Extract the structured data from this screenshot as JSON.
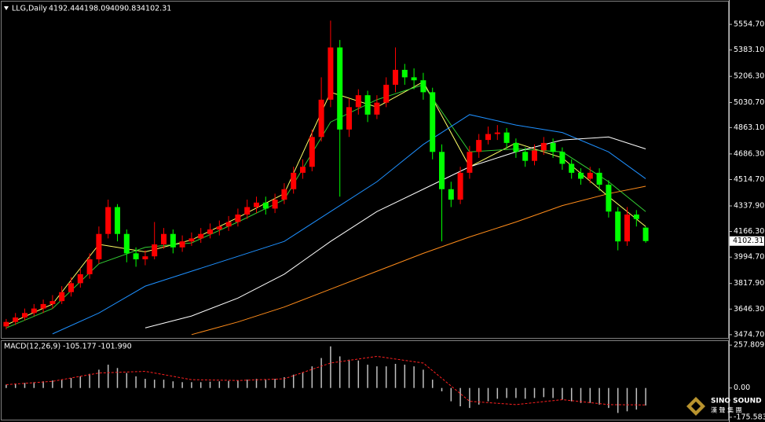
{
  "chart_data": [
    {
      "type": "candlestick",
      "title": "LLG,Daily",
      "open": [
        3530,
        3560,
        3590,
        3620,
        3650,
        3680,
        3700,
        3760,
        3820,
        3880,
        3980,
        4150,
        4330,
        4150,
        4020,
        3980,
        4000,
        4080,
        4150,
        4060,
        4100,
        4120,
        4150,
        4180,
        4200,
        4230,
        4280,
        4330,
        4360,
        4320,
        4380,
        4450,
        4560,
        4600,
        4800,
        5050,
        5400,
        4850,
        5000,
        5080,
        4950,
        5030,
        5150,
        5250,
        5200,
        5180,
        5100,
        4700,
        4450,
        4380,
        4560,
        4700,
        4780,
        4820,
        4830,
        4760,
        4700,
        4640,
        4710,
        4760,
        4700,
        4620,
        4560,
        4520,
        4560,
        4480,
        4300,
        4100,
        4280,
        4192.44
      ],
      "high": [
        3580,
        3620,
        3650,
        3680,
        3710,
        3740,
        3800,
        3860,
        3920,
        4020,
        4200,
        4380,
        4350,
        4180,
        4060,
        4040,
        4230,
        4190,
        4180,
        4140,
        4160,
        4190,
        4220,
        4240,
        4270,
        4320,
        4380,
        4400,
        4400,
        4420,
        4490,
        4600,
        4650,
        4850,
        5200,
        5580,
        5450,
        5060,
        5120,
        5110,
        5080,
        5200,
        5400,
        5290,
        5260,
        5230,
        5130,
        4750,
        4500,
        4600,
        4740,
        4820,
        4870,
        4880,
        4860,
        4790,
        4730,
        4750,
        4800,
        4790,
        4730,
        4650,
        4590,
        4600,
        4590,
        4510,
        4330,
        4330,
        4310,
        4198.09
      ],
      "low": [
        3510,
        3540,
        3570,
        3600,
        3620,
        3650,
        3680,
        3730,
        3790,
        3850,
        3950,
        4120,
        4100,
        3960,
        3930,
        3940,
        3980,
        4050,
        4020,
        4030,
        4070,
        4090,
        4120,
        4140,
        4170,
        4200,
        4250,
        4290,
        4280,
        4290,
        4350,
        4420,
        4520,
        4570,
        4770,
        5000,
        4400,
        4800,
        4950,
        4900,
        4920,
        5000,
        5100,
        5150,
        5120,
        5050,
        4650,
        4100,
        4330,
        4350,
        4520,
        4660,
        4750,
        4780,
        4720,
        4660,
        4600,
        4610,
        4680,
        4660,
        4580,
        4520,
        4480,
        4490,
        4440,
        4260,
        4040,
        4070,
        4200,
        4090.83
      ],
      "close": [
        3560,
        3590,
        3620,
        3650,
        3680,
        3700,
        3760,
        3820,
        3880,
        3980,
        4150,
        4330,
        4150,
        4020,
        3980,
        4000,
        4080,
        4150,
        4060,
        4100,
        4120,
        4150,
        4180,
        4200,
        4230,
        4280,
        4330,
        4360,
        4320,
        4380,
        4450,
        4560,
        4600,
        4800,
        5050,
        5400,
        4850,
        5000,
        5080,
        4950,
        5030,
        5150,
        5250,
        5200,
        5180,
        5100,
        4700,
        4450,
        4380,
        4560,
        4700,
        4780,
        4820,
        4830,
        4760,
        4700,
        4640,
        4710,
        4760,
        4700,
        4620,
        4560,
        4520,
        4560,
        4480,
        4300,
        4100,
        4280,
        4250,
        4102.31
      ],
      "up_color": "#ff0000",
      "down_color": "#00ff00",
      "lines_x": [
        0,
        5,
        10,
        15,
        20,
        25,
        30,
        35,
        40,
        45,
        50,
        55,
        60,
        65,
        69
      ],
      "lines": [
        {
          "color": "#ffff66",
          "values": [
            3540,
            3680,
            4080,
            4030,
            4110,
            4260,
            4420,
            5100,
            5000,
            5170,
            4600,
            4760,
            4660,
            4400,
            4200
          ]
        },
        {
          "color": "#33cc33",
          "values": [
            3520,
            3650,
            3950,
            4060,
            4090,
            4230,
            4380,
            4900,
            5050,
            5150,
            4700,
            4720,
            4700,
            4500,
            4300
          ]
        },
        {
          "color": "#1e90ff",
          "values": [
            null,
            3480,
            3620,
            3800,
            3900,
            4000,
            4100,
            4300,
            4500,
            4750,
            4950,
            4880,
            4830,
            4700,
            4520
          ]
        },
        {
          "color": "#ffffff",
          "values": [
            null,
            null,
            null,
            3520,
            3600,
            3720,
            3880,
            4100,
            4300,
            4450,
            4600,
            4700,
            4780,
            4800,
            4720
          ]
        },
        {
          "color": "#ff8c1a",
          "values": [
            null,
            null,
            null,
            null,
            3475,
            3560,
            3660,
            3780,
            3900,
            4020,
            4130,
            4230,
            4340,
            4420,
            4470
          ]
        }
      ],
      "ylim": [
        3453,
        5713
      ],
      "yticks": [
        {
          "value": 5554.7,
          "label": "5554.70"
        },
        {
          "value": 5383.1,
          "label": "5383.10"
        },
        {
          "value": 5206.3,
          "label": "5206.30"
        },
        {
          "value": 5030.7,
          "label": "5030.70"
        },
        {
          "value": 4863.1,
          "label": "4863.10"
        },
        {
          "value": 4686.3,
          "label": "4686.30"
        },
        {
          "value": 4514.7,
          "label": "4514.70"
        },
        {
          "value": 4337.9,
          "label": "4337.90"
        },
        {
          "value": 4166.3,
          "label": "4166.30"
        },
        {
          "value": 3994.7,
          "label": "3994.70"
        },
        {
          "value": 3817.9,
          "label": "3817.90"
        },
        {
          "value": 3646.3,
          "label": "3646.30"
        },
        {
          "value": 3474.7,
          "label": "3474.70"
        }
      ]
    },
    {
      "type": "macd",
      "title": "MACD(12,26,9)",
      "values": [
        20,
        25,
        30,
        35,
        40,
        45,
        50,
        60,
        70,
        85,
        110,
        140,
        120,
        90,
        70,
        55,
        50,
        50,
        40,
        35,
        35,
        35,
        38,
        40,
        42,
        45,
        50,
        55,
        50,
        55,
        65,
        80,
        95,
        130,
        180,
        250,
        190,
        170,
        165,
        140,
        130,
        130,
        145,
        140,
        130,
        110,
        50,
        -20,
        -80,
        -110,
        -120,
        -100,
        -80,
        -65,
        -60,
        -60,
        -65,
        -60,
        -55,
        -60,
        -70,
        -80,
        -90,
        -90,
        -100,
        -120,
        -150,
        -140,
        -130,
        -105.177
      ],
      "color": "#c0c0c0",
      "signal_x": [
        0,
        5,
        10,
        15,
        20,
        25,
        30,
        35,
        40,
        45,
        50,
        55,
        60,
        65,
        69
      ],
      "signal": [
        20,
        40,
        90,
        100,
        50,
        45,
        55,
        150,
        190,
        150,
        -80,
        -100,
        -70,
        -100,
        -101.99
      ],
      "signal_value_labels": [
        null,
        null,
        null,
        null,
        null,
        null,
        null,
        null,
        null,
        null,
        null,
        null,
        null,
        null,
        "-101.990"
      ],
      "signal_color": "#ff2020",
      "ylim": [
        -195,
        282
      ],
      "yticks": [
        257.809,
        {
          "value": 0,
          "label": "0.00"
        },
        -175.583
      ]
    }
  ],
  "watermark": {
    "name": "SINO SOUND",
    "subtitle": "漢 聲 集 團"
  }
}
